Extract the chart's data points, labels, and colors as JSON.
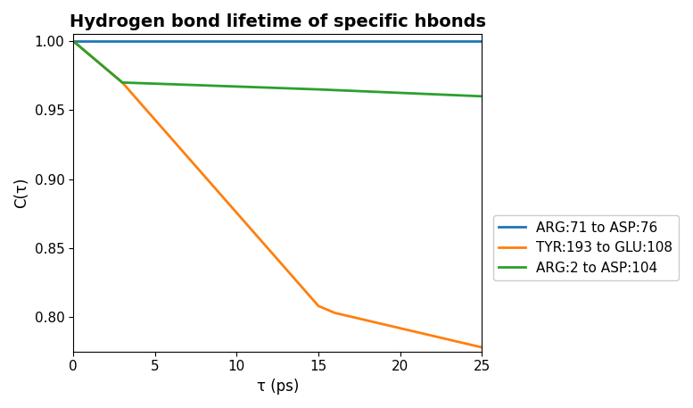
{
  "title": "Hydrogen bond lifetime of specific hbonds",
  "xlabel": "τ (ps)",
  "ylabel": "C(τ)",
  "lines": [
    {
      "label": "ARG:71 to ASP:76",
      "color": "#1f77b4",
      "x": [
        0,
        3,
        25
      ],
      "y": [
        1.0,
        1.0,
        1.0
      ]
    },
    {
      "label": "TYR:193 to GLU:108",
      "color": "#ff7f0e",
      "x": [
        0,
        3,
        15,
        16,
        25
      ],
      "y": [
        1.0,
        0.97,
        0.808,
        0.803,
        0.778
      ]
    },
    {
      "label": "ARG:2 to ASP:104",
      "color": "#2ca02c",
      "x": [
        0,
        3,
        15,
        25
      ],
      "y": [
        1.0,
        0.97,
        0.965,
        0.96
      ]
    }
  ],
  "xlim": [
    0,
    25
  ],
  "ylim": [
    0.775,
    1.005
  ],
  "yticks": [
    0.8,
    0.85,
    0.9,
    0.95,
    1.0
  ],
  "xticks": [
    0,
    5,
    10,
    15,
    20,
    25
  ],
  "linewidth": 2.0,
  "title_fontsize": 14,
  "label_fontsize": 12,
  "tick_fontsize": 11,
  "fig_width": 7.77,
  "fig_height": 4.57,
  "dpi": 100
}
